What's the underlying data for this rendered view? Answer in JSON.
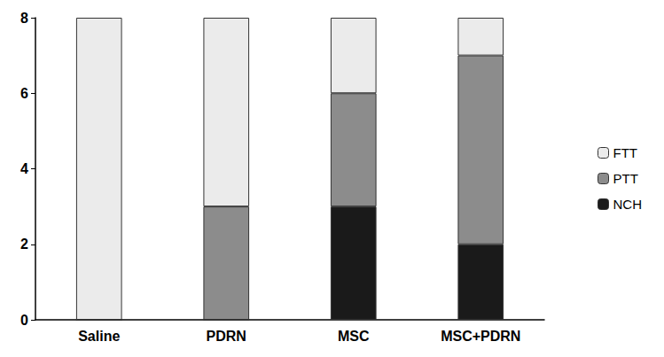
{
  "chart_data": {
    "type": "bar",
    "stacked": true,
    "legend": "right",
    "grid": false,
    "categories": [
      "Saline",
      "PDRN",
      "MSC",
      "MSC+PDRN"
    ],
    "series": [
      {
        "name": "NCH",
        "color": "#1a1a1a",
        "values": [
          0,
          0,
          3,
          2
        ]
      },
      {
        "name": "PTT",
        "color": "#8c8c8c",
        "values": [
          0,
          3,
          3,
          5
        ]
      },
      {
        "name": "FTT",
        "color": "#ebebeb",
        "values": [
          8,
          5,
          2,
          1
        ]
      }
    ],
    "ylim": [
      0,
      8
    ],
    "yticks": [
      0,
      2,
      4,
      6,
      8
    ]
  }
}
